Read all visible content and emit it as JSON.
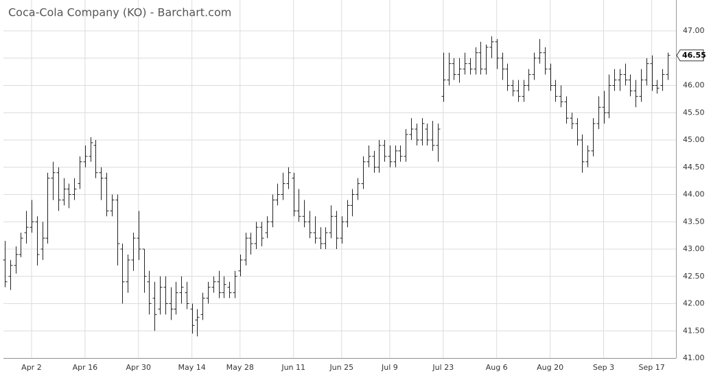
{
  "chart_data": {
    "type": "ohlc",
    "title": "Coca-Cola Company (KO) - Barchart.com",
    "color": "#222222",
    "grid": true,
    "categories": [
      null,
      null,
      null,
      null,
      null,
      "Apr 2",
      null,
      null,
      null,
      null,
      null,
      null,
      null,
      null,
      null,
      "Apr 16",
      null,
      null,
      null,
      null,
      null,
      null,
      null,
      null,
      null,
      "Apr 30",
      null,
      null,
      null,
      null,
      null,
      null,
      null,
      null,
      null,
      "May 14",
      null,
      null,
      null,
      null,
      null,
      null,
      null,
      null,
      "May 28",
      null,
      null,
      null,
      null,
      null,
      null,
      null,
      null,
      null,
      "Jun 11",
      null,
      null,
      null,
      null,
      null,
      null,
      null,
      null,
      "Jun 25",
      null,
      null,
      null,
      null,
      null,
      null,
      null,
      null,
      "Jul 9",
      null,
      null,
      null,
      null,
      null,
      null,
      null,
      null,
      null,
      "Jul 23",
      null,
      null,
      null,
      null,
      null,
      null,
      null,
      null,
      null,
      "Aug 6",
      null,
      null,
      null,
      null,
      null,
      null,
      null,
      null,
      null,
      "Aug 20",
      null,
      null,
      null,
      null,
      null,
      null,
      null,
      null,
      null,
      "Sep 3",
      null,
      null,
      null,
      null,
      null,
      null,
      null,
      null,
      "Sep 17",
      null,
      null,
      null
    ],
    "open": [
      42.8,
      42.5,
      42.7,
      42.9,
      43.3,
      43.4,
      43.5,
      43.0,
      43.2,
      44.3,
      44.4,
      43.9,
      44.1,
      44.0,
      44.2,
      44.6,
      44.7,
      44.9,
      44.4,
      44.3,
      43.7,
      43.9,
      43.0,
      42.4,
      42.8,
      43.2,
      43.0,
      42.4,
      42.1,
      41.9,
      42.3,
      42.0,
      41.9,
      42.2,
      42.2,
      41.9,
      41.7,
      41.8,
      42.1,
      42.3,
      42.4,
      42.2,
      42.3,
      42.2,
      42.6,
      42.8,
      43.2,
      43.1,
      43.4,
      43.3,
      43.5,
      43.9,
      44.0,
      44.2,
      44.3,
      43.7,
      43.6,
      43.5,
      43.3,
      43.2,
      43.1,
      43.3,
      43.6,
      43.2,
      43.5,
      43.8,
      44.0,
      44.2,
      44.6,
      44.7,
      44.5,
      44.9,
      44.7,
      44.6,
      44.8,
      44.7,
      45.1,
      45.2,
      45.0,
      45.2,
      45.0,
      44.9,
      45.8,
      46.1,
      46.4,
      46.2,
      46.3,
      46.4,
      46.3,
      46.6,
      46.3,
      46.7,
      46.8,
      46.5,
      46.3,
      46.0,
      45.9,
      45.8,
      46.0,
      46.2,
      46.5,
      46.6,
      46.3,
      46.0,
      45.8,
      45.7,
      45.4,
      45.3,
      45.0,
      44.6,
      44.8,
      45.3,
      45.6,
      45.5,
      46.0,
      46.1,
      46.2,
      46.1,
      45.9,
      45.8,
      46.1,
      46.4,
      46.0,
      46.0,
      46.2
    ],
    "high": [
      43.15,
      42.8,
      43.05,
      43.3,
      43.7,
      43.9,
      43.6,
      43.5,
      44.4,
      44.6,
      44.5,
      44.3,
      44.2,
      44.3,
      44.7,
      44.9,
      45.05,
      45.0,
      44.5,
      44.4,
      44.0,
      44.0,
      43.1,
      42.9,
      43.3,
      43.7,
      43.0,
      42.6,
      42.4,
      42.5,
      42.5,
      42.3,
      42.4,
      42.5,
      42.4,
      42.0,
      41.9,
      42.2,
      42.4,
      42.5,
      42.6,
      42.5,
      42.4,
      42.6,
      42.9,
      43.3,
      43.3,
      43.5,
      43.5,
      43.6,
      44.0,
      44.2,
      44.4,
      44.5,
      44.4,
      44.1,
      43.9,
      43.7,
      43.6,
      43.4,
      43.4,
      43.8,
      43.7,
      43.6,
      43.9,
      44.1,
      44.3,
      44.7,
      44.9,
      44.8,
      45.0,
      45.0,
      44.9,
      44.9,
      44.9,
      45.2,
      45.4,
      45.3,
      45.4,
      45.3,
      45.35,
      45.3,
      46.6,
      46.6,
      46.5,
      46.5,
      46.6,
      46.5,
      46.7,
      46.8,
      46.75,
      46.9,
      46.85,
      46.6,
      46.4,
      46.1,
      46.1,
      46.1,
      46.3,
      46.6,
      46.85,
      46.7,
      46.4,
      46.1,
      46.0,
      45.8,
      45.5,
      45.4,
      45.1,
      44.9,
      45.4,
      45.8,
      45.9,
      46.2,
      46.3,
      46.3,
      46.4,
      46.2,
      46.1,
      46.3,
      46.5,
      46.55,
      46.1,
      46.3,
      46.6
    ],
    "low": [
      42.3,
      42.25,
      42.55,
      42.85,
      43.1,
      43.3,
      42.7,
      42.8,
      43.1,
      43.9,
      43.7,
      43.8,
      43.75,
      43.9,
      44.1,
      44.5,
      44.6,
      44.3,
      43.9,
      43.6,
      43.6,
      42.7,
      42.0,
      42.2,
      42.6,
      42.8,
      42.2,
      41.8,
      41.5,
      41.8,
      41.8,
      41.7,
      41.8,
      42.0,
      41.9,
      41.45,
      41.4,
      41.7,
      42.0,
      42.2,
      42.1,
      42.1,
      42.1,
      42.1,
      42.5,
      42.7,
      42.9,
      43.0,
      43.05,
      43.2,
      43.4,
      43.8,
      43.9,
      44.1,
      43.6,
      43.5,
      43.4,
      43.2,
      43.1,
      43.0,
      43.0,
      43.2,
      43.0,
      43.1,
      43.4,
      43.6,
      43.9,
      44.1,
      44.5,
      44.4,
      44.4,
      44.6,
      44.5,
      44.5,
      44.6,
      44.6,
      45.0,
      44.9,
      44.9,
      44.9,
      44.8,
      44.6,
      45.7,
      46.0,
      46.1,
      46.05,
      46.2,
      46.2,
      46.2,
      46.2,
      46.2,
      46.5,
      46.3,
      46.1,
      45.9,
      45.8,
      45.7,
      45.7,
      45.9,
      46.1,
      46.4,
      46.2,
      45.9,
      45.7,
      45.6,
      45.3,
      45.2,
      44.9,
      44.4,
      44.5,
      44.7,
      45.2,
      45.3,
      45.4,
      45.9,
      45.9,
      46.0,
      45.8,
      45.6,
      45.7,
      46.0,
      45.9,
      45.85,
      45.9,
      46.1
    ],
    "close": [
      42.4,
      42.7,
      42.9,
      43.2,
      43.4,
      43.5,
      42.9,
      43.2,
      44.3,
      44.4,
      43.9,
      44.1,
      44.0,
      44.1,
      44.6,
      44.7,
      44.95,
      44.4,
      44.3,
      43.7,
      43.9,
      43.1,
      42.4,
      42.8,
      43.2,
      43.0,
      42.5,
      42.0,
      41.8,
      42.3,
      42.0,
      41.9,
      42.2,
      42.3,
      42.0,
      41.6,
      41.75,
      42.1,
      42.3,
      42.4,
      42.2,
      42.35,
      42.2,
      42.5,
      42.8,
      43.2,
      43.1,
      43.4,
      43.2,
      43.5,
      43.9,
      44.0,
      44.2,
      44.4,
      43.7,
      43.6,
      43.5,
      43.3,
      43.2,
      43.1,
      43.3,
      43.6,
      43.2,
      43.5,
      43.8,
      44.0,
      44.2,
      44.6,
      44.7,
      44.5,
      44.9,
      44.7,
      44.6,
      44.8,
      44.7,
      45.1,
      45.2,
      45.0,
      45.3,
      45.0,
      44.9,
      45.2,
      46.1,
      46.4,
      46.2,
      46.3,
      46.4,
      46.3,
      46.6,
      46.3,
      46.7,
      46.8,
      46.5,
      46.3,
      46.0,
      45.9,
      45.8,
      46.0,
      46.2,
      46.5,
      46.6,
      46.3,
      46.0,
      45.8,
      45.7,
      45.4,
      45.3,
      45.0,
      44.6,
      44.8,
      45.3,
      45.6,
      45.5,
      46.0,
      46.1,
      46.2,
      46.1,
      45.9,
      45.8,
      46.1,
      46.4,
      46.0,
      45.95,
      46.2,
      46.55
    ],
    "ylim": [
      41,
      47.5
    ],
    "yticks": [
      {
        "value": 41,
        "label": "41.00"
      },
      {
        "value": 41.5,
        "label": "41.50"
      },
      {
        "value": 42,
        "label": "42.00"
      },
      {
        "value": 42.5,
        "label": "42.50"
      },
      {
        "value": 43,
        "label": "43.00"
      },
      {
        "value": 43.5,
        "label": "43.50"
      },
      {
        "value": 44,
        "label": "44.00"
      },
      {
        "value": 44.5,
        "label": "44.50"
      },
      {
        "value": 45,
        "label": "45.00"
      },
      {
        "value": 45.5,
        "label": "45.50"
      },
      {
        "value": 46,
        "label": "46.00"
      },
      {
        "value": 46.5,
        "label": "46.50"
      },
      {
        "value": 47,
        "label": "47.00"
      }
    ]
  }
}
